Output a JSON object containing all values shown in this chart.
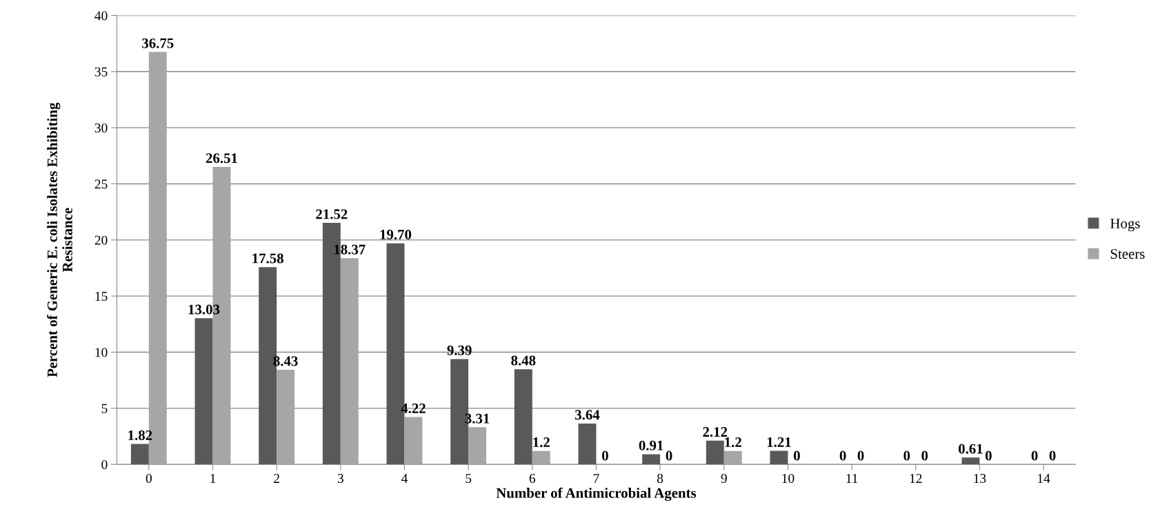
{
  "chart_data": {
    "type": "bar",
    "xlabel": "Number of Antimicrobial Agents",
    "ylabel": "Percent of Generic E. coli Isolates Exhibiting\nResistance",
    "categories": [
      "0",
      "1",
      "2",
      "3",
      "4",
      "5",
      "6",
      "7",
      "8",
      "9",
      "10",
      "11",
      "12",
      "13",
      "14"
    ],
    "series": [
      {
        "name": "Hogs",
        "color": "#595959",
        "values": [
          1.82,
          13.03,
          17.58,
          21.52,
          19.7,
          9.39,
          8.48,
          3.64,
          0.91,
          2.12,
          1.21,
          0,
          0,
          0.61,
          0
        ],
        "value_labels": [
          "1.82",
          "13.03",
          "17.58",
          "21.52",
          "19.70",
          "9.39",
          "8.48",
          "3.64",
          "0.91",
          "2.12",
          "1.21",
          "0",
          "0",
          "0.61",
          "0"
        ]
      },
      {
        "name": "Steers",
        "color": "#a6a6a6",
        "values": [
          36.75,
          26.51,
          8.43,
          18.37,
          4.22,
          3.31,
          1.2,
          0,
          0,
          1.2,
          0,
          0,
          0,
          0,
          0
        ],
        "value_labels": [
          "36.75",
          "26.51",
          "8.43",
          "18.37",
          "4.22",
          "3.31",
          "1.2",
          "0",
          "0",
          "1.2",
          "0",
          "0",
          "0",
          "0",
          "0"
        ]
      }
    ],
    "ylim": [
      0,
      40
    ],
    "yticks": [
      0,
      5,
      10,
      15,
      20,
      25,
      30,
      35,
      40
    ],
    "grid": "y",
    "legend": "right"
  }
}
